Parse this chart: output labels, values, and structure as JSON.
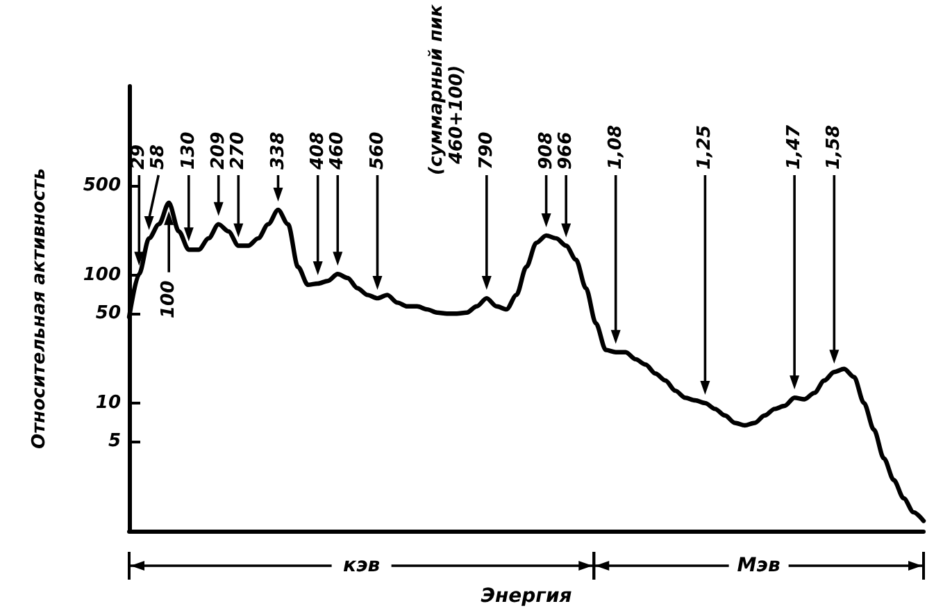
{
  "chart_data": {
    "type": "line",
    "xlabel": "Энергия",
    "ylabel": "Относительная активность",
    "categories": [
      null,
      null,
      null,
      null,
      null,
      null,
      null,
      null,
      null,
      null,
      null,
      null,
      null,
      null,
      null,
      null,
      null,
      null,
      null,
      null,
      null,
      null,
      null,
      null,
      null,
      null,
      null,
      null,
      null,
      null,
      null,
      null,
      null,
      null,
      null,
      null,
      null,
      null,
      null,
      null,
      null,
      null,
      null,
      null,
      null,
      null,
      null,
      null,
      null,
      null,
      null,
      null,
      null,
      null,
      null,
      null,
      null,
      null,
      null,
      null,
      null,
      null,
      null,
      null,
      null,
      null,
      null,
      null,
      null,
      null,
      null,
      null,
      null,
      null,
      null,
      null,
      null,
      null,
      null,
      null,
      null
    ],
    "series": [
      {
        "color": "#000000",
        "values": [
          47,
          102,
          194,
          250,
          368,
          220,
          158,
          158,
          194,
          250,
          220,
          170,
          170,
          194,
          250,
          324,
          250,
          116,
          84,
          86,
          90,
          102,
          95,
          79,
          70,
          66,
          70,
          61,
          57,
          57,
          54,
          51,
          50,
          50,
          51,
          57,
          66,
          57,
          54,
          70,
          116,
          179,
          204,
          194,
          170,
          132,
          79,
          42,
          26,
          25,
          25,
          22,
          20,
          17,
          15,
          12.5,
          11,
          10.5,
          10,
          9,
          8,
          7,
          6.7,
          7,
          8,
          9,
          9.5,
          11,
          10.7,
          12,
          15,
          17.5,
          18.5,
          16,
          10,
          6.2,
          3.7,
          2.5,
          1.8,
          1.4,
          1.2
        ]
      }
    ],
    "log": "y",
    "ylim": [
      1,
      3000
    ],
    "yticks": [
      5,
      10,
      50,
      100,
      500
    ],
    "annotations": [
      "29",
      "58",
      "100",
      "130",
      "209",
      "270",
      "338",
      "408",
      "460",
      "560",
      "790",
      "(суммарный пик 460+100)",
      "908",
      "966",
      "1,08",
      "1,25",
      "1,47",
      "1,58",
      "кэв",
      "Мэв"
    ],
    "grid": false,
    "marker": "none",
    "line_style": "solid"
  }
}
